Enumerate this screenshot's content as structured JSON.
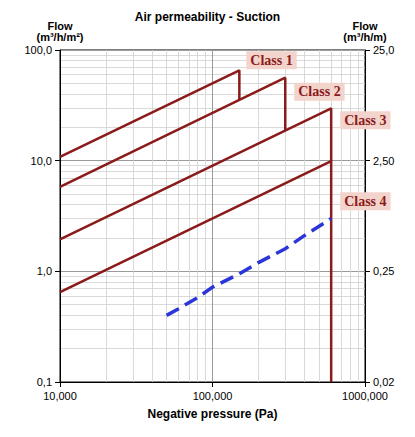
{
  "chart_data": {
    "type": "line",
    "title": "Air permeability - Suction",
    "x_label": "Negative pressure (Pa)",
    "y_label": "Flow\n(m³/h/m²)",
    "y2_label": "Flow\n(m³/h/m)",
    "log": true,
    "grid": true,
    "marker": "none",
    "xlim": [
      10,
      1000
    ],
    "xticks": [
      {
        "value": 10,
        "label": "10,000"
      },
      {
        "value": 100,
        "label": "100,000"
      },
      {
        "value": 1000,
        "label": "1000,000"
      }
    ],
    "ylim": [
      0.1,
      100
    ],
    "yticks": [
      {
        "value": 0.1,
        "label": "0,1"
      },
      {
        "value": 1,
        "label": "1,0"
      },
      {
        "value": 10,
        "label": "10,0"
      },
      {
        "value": 100,
        "label": "100,0"
      }
    ],
    "y2lim": [
      0.025,
      25
    ],
    "y2ticks": [
      {
        "value": 0.025,
        "label": "0,02"
      },
      {
        "value": 0.25,
        "label": "0,25"
      },
      {
        "value": 2.5,
        "label": "2,50"
      },
      {
        "value": 25,
        "label": "25,0"
      }
    ],
    "series": [
      {
        "name": "Class 1",
        "color": "#8b1a1a",
        "line_style": "solid",
        "x": [
          10,
          150,
          150
        ],
        "values": [
          10.8,
          65.5,
          35.4
        ]
      },
      {
        "name": "Class 2",
        "color": "#8b1a1a",
        "line_style": "solid",
        "x": [
          10,
          300,
          300
        ],
        "values": [
          5.8,
          56.2,
          18.7
        ]
      },
      {
        "name": "Class 3",
        "color": "#8b1a1a",
        "line_style": "solid",
        "x": [
          10,
          600,
          600
        ],
        "values": [
          1.94,
          29.7,
          9.9
        ]
      },
      {
        "name": "Class 4",
        "color": "#8b1a1a",
        "line_style": "solid",
        "x": [
          10,
          600,
          600
        ],
        "values": [
          0.65,
          9.9,
          0.1
        ]
      },
      {
        "color": "#2b35d8",
        "line_style": "dashed",
        "x": [
          50,
          60,
          80,
          100,
          150,
          200,
          300,
          400,
          500,
          600
        ],
        "values": [
          0.4,
          0.46,
          0.58,
          0.72,
          0.95,
          1.2,
          1.6,
          2.1,
          2.55,
          3.0
        ]
      }
    ]
  }
}
